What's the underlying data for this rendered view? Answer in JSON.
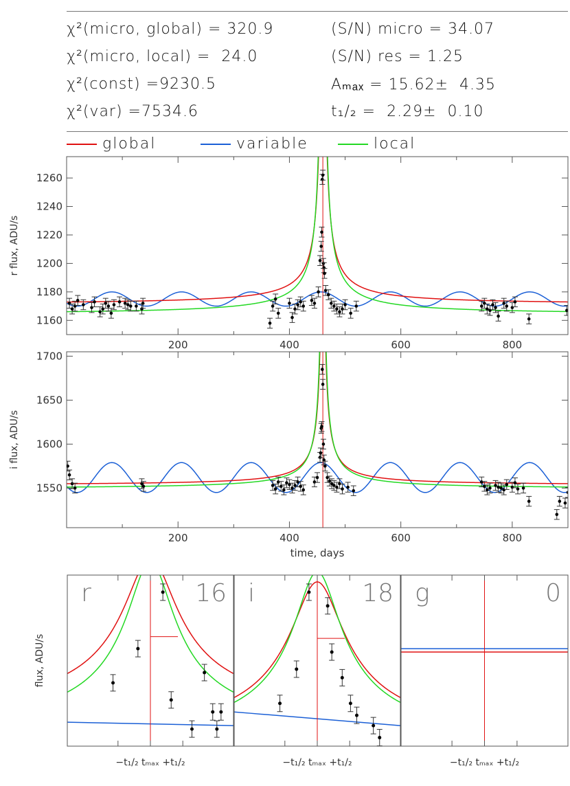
{
  "stats": {
    "chi2_micro_global": "χ²(micro, global) = 320.9",
    "chi2_micro_local": "χ²(micro, local) =  24.0",
    "chi2_const": "χ²(const) =9230.5",
    "chi2_var": "χ²(var) =7534.6",
    "sn_micro": "(S/N) micro = 34.07",
    "sn_res": "(S/N) res = 1.25",
    "amax": "Aₘₐₓ = 15.62±  4.35",
    "thalf": "t₁/₂ =  2.29±  0.10"
  },
  "legend": [
    {
      "label": "global",
      "color": "#e01010"
    },
    {
      "label": "variable",
      "color": "#1a5fd6"
    },
    {
      "label": "local",
      "color": "#22d822"
    }
  ],
  "colors": {
    "global": "#e01010",
    "variable": "#1a5fd6",
    "local": "#22d822",
    "peak_line": "#e01010",
    "points": "#000000"
  },
  "chart_data": [
    {
      "type": "scatter",
      "ylabel": "r flux, ADU/s",
      "xlabel": "",
      "xlim": [
        0,
        900
      ],
      "ylim": [
        1150,
        1275
      ],
      "x_ticks": [
        200,
        400,
        600,
        800
      ],
      "y_ticks": [
        1160,
        1180,
        1200,
        1220,
        1240,
        1260
      ],
      "t0": 460,
      "series": [
        {
          "name": "global",
          "baseline": 1171,
          "peak": 1500,
          "tE": 2.6
        },
        {
          "name": "variable",
          "mean": 1175,
          "amp": 5,
          "period": 125
        },
        {
          "name": "local",
          "baseline": 1164,
          "peak": 1600,
          "tE": 2.2
        }
      ],
      "points": [
        [
          5,
          1172
        ],
        [
          10,
          1168
        ],
        [
          15,
          1170
        ],
        [
          20,
          1174
        ],
        [
          30,
          1171
        ],
        [
          45,
          1169
        ],
        [
          50,
          1173
        ],
        [
          60,
          1166
        ],
        [
          65,
          1168
        ],
        [
          70,
          1172
        ],
        [
          75,
          1170
        ],
        [
          80,
          1165
        ],
        [
          85,
          1171
        ],
        [
          95,
          1173
        ],
        [
          105,
          1172
        ],
        [
          110,
          1171
        ],
        [
          115,
          1170
        ],
        [
          125,
          1170
        ],
        [
          135,
          1168
        ],
        [
          137,
          1172
        ],
        [
          365,
          1158
        ],
        [
          370,
          1170
        ],
        [
          375,
          1175
        ],
        [
          380,
          1165
        ],
        [
          400,
          1172
        ],
        [
          405,
          1162
        ],
        [
          410,
          1168
        ],
        [
          415,
          1171
        ],
        [
          420,
          1173
        ],
        [
          425,
          1170
        ],
        [
          440,
          1174
        ],
        [
          445,
          1172
        ],
        [
          452,
          1180
        ],
        [
          455,
          1202
        ],
        [
          457,
          1212
        ],
        [
          458,
          1222
        ],
        [
          459,
          1259
        ],
        [
          460,
          1262
        ],
        [
          461,
          1200
        ],
        [
          462,
          1197
        ],
        [
          463,
          1193
        ],
        [
          465,
          1181
        ],
        [
          470,
          1178
        ],
        [
          475,
          1172
        ],
        [
          480,
          1170
        ],
        [
          485,
          1168
        ],
        [
          490,
          1166
        ],
        [
          495,
          1168
        ],
        [
          500,
          1171
        ],
        [
          510,
          1165
        ],
        [
          520,
          1170
        ],
        [
          745,
          1170
        ],
        [
          750,
          1172
        ],
        [
          755,
          1168
        ],
        [
          760,
          1167
        ],
        [
          765,
          1171
        ],
        [
          770,
          1169
        ],
        [
          775,
          1163
        ],
        [
          785,
          1172
        ],
        [
          790,
          1170
        ],
        [
          800,
          1169
        ],
        [
          805,
          1173
        ],
        [
          830,
          1161
        ],
        [
          898,
          1167
        ]
      ]
    },
    {
      "type": "scatter",
      "ylabel": "i flux, ADU/s",
      "xlabel": "time, days",
      "xlim": [
        0,
        900
      ],
      "ylim": [
        1505,
        1705
      ],
      "x_ticks": [
        200,
        400,
        600,
        800
      ],
      "y_ticks": [
        1550,
        1600,
        1650,
        1700
      ],
      "t0": 460,
      "series": [
        {
          "name": "global",
          "baseline": 1553,
          "peak": 1900,
          "tE": 2.6
        },
        {
          "name": "variable",
          "mean": 1562,
          "amp": 17,
          "period": 125
        },
        {
          "name": "local",
          "baseline": 1549,
          "peak": 2000,
          "tE": 2.2
        }
      ],
      "points": [
        [
          2,
          1575
        ],
        [
          5,
          1565
        ],
        [
          10,
          1555
        ],
        [
          15,
          1550
        ],
        [
          135,
          1555
        ],
        [
          138,
          1552
        ],
        [
          370,
          1553
        ],
        [
          375,
          1549
        ],
        [
          380,
          1557
        ],
        [
          385,
          1552
        ],
        [
          390,
          1548
        ],
        [
          395,
          1556
        ],
        [
          400,
          1554
        ],
        [
          405,
          1550
        ],
        [
          410,
          1553
        ],
        [
          415,
          1557
        ],
        [
          420,
          1552
        ],
        [
          425,
          1548
        ],
        [
          445,
          1557
        ],
        [
          450,
          1562
        ],
        [
          455,
          1585
        ],
        [
          456,
          1590
        ],
        [
          457,
          1618
        ],
        [
          458,
          1620
        ],
        [
          459,
          1685
        ],
        [
          460,
          1668
        ],
        [
          461,
          1600
        ],
        [
          462,
          1582
        ],
        [
          464,
          1575
        ],
        [
          468,
          1562
        ],
        [
          472,
          1558
        ],
        [
          476,
          1555
        ],
        [
          480,
          1553
        ],
        [
          485,
          1551
        ],
        [
          490,
          1555
        ],
        [
          495,
          1549
        ],
        [
          505,
          1551
        ],
        [
          515,
          1547
        ],
        [
          745,
          1557
        ],
        [
          750,
          1552
        ],
        [
          755,
          1548
        ],
        [
          760,
          1550
        ],
        [
          770,
          1553
        ],
        [
          775,
          1551
        ],
        [
          780,
          1550
        ],
        [
          785,
          1548
        ],
        [
          790,
          1554
        ],
        [
          800,
          1551
        ],
        [
          805,
          1556
        ],
        [
          810,
          1549
        ],
        [
          820,
          1550
        ],
        [
          830,
          1535
        ],
        [
          880,
          1520
        ],
        [
          885,
          1535
        ],
        [
          895,
          1533
        ],
        [
          900,
          1545
        ]
      ]
    },
    {
      "type": "scatter",
      "band": "r",
      "count": "16",
      "ylabel": "flux, ADU/s",
      "points": [
        [
          -0.9,
          0.37
        ],
        [
          -0.3,
          0.57
        ],
        [
          0.3,
          0.9
        ],
        [
          0.5,
          0.27
        ],
        [
          1.0,
          0.1
        ],
        [
          1.3,
          0.43
        ],
        [
          1.5,
          0.2
        ],
        [
          1.6,
          0.1
        ],
        [
          1.7,
          0.2
        ]
      ],
      "global_base": 0.14,
      "local_base": 0.04,
      "var_level": 0.13,
      "var_slope": -0.005
    },
    {
      "type": "scatter",
      "band": "i",
      "count": "18",
      "points": [
        [
          -0.9,
          0.25
        ],
        [
          -0.5,
          0.45
        ],
        [
          -0.2,
          0.9
        ],
        [
          0.25,
          0.82
        ],
        [
          0.35,
          0.55
        ],
        [
          0.6,
          0.4
        ],
        [
          0.8,
          0.25
        ],
        [
          0.95,
          0.18
        ],
        [
          1.35,
          0.12
        ],
        [
          1.5,
          0.05
        ]
      ],
      "global_base": 0.0,
      "local_base": -0.02,
      "var_level": 0.16,
      "var_slope": -0.02
    },
    {
      "type": "scatter",
      "band": "g",
      "count": "0",
      "points": [],
      "global_base": 0.55,
      "var_level": 0.57
    }
  ],
  "bottom_axis_label": "−t₁/₂ tₘₐₓ +t₁/₂"
}
